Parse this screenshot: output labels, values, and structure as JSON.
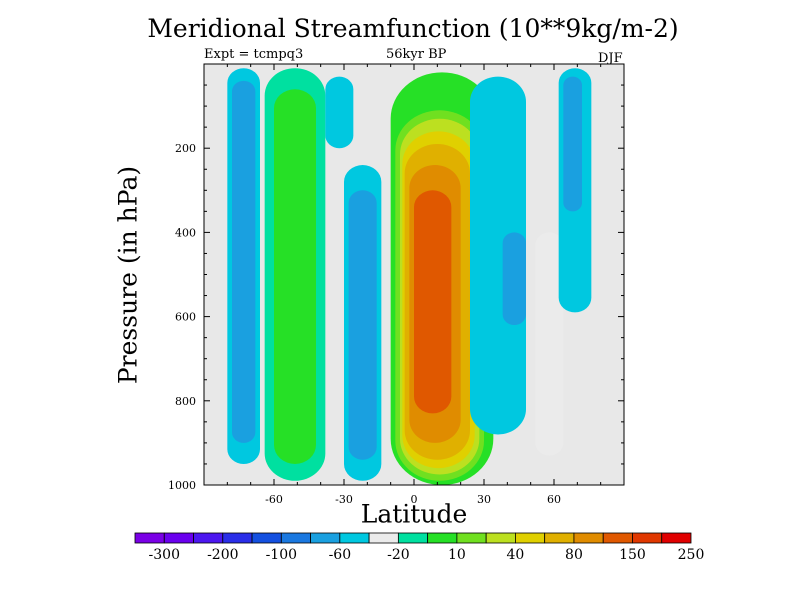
{
  "chart_data": {
    "type": "contour",
    "title": "Meridional Streamfunction (10**9kg/m-2)",
    "subtitle_left": "Expt = tcmpq3",
    "subtitle_center": "56kyr BP",
    "subtitle_right": "DJF",
    "xlabel": "Latitude",
    "ylabel": "Pressure (in hPa)",
    "xlim": [
      -90,
      90
    ],
    "ylim": [
      1000,
      0
    ],
    "x_ticks": [
      -60,
      -30,
      0,
      30,
      60
    ],
    "y_ticks": [
      200,
      400,
      600,
      800,
      1000
    ],
    "grid": false,
    "background_color": "#e8e8e8",
    "colorbar": {
      "colors": [
        "#7a00e6",
        "#6a00ee",
        "#4c17f0",
        "#2a2ee8",
        "#1450e0",
        "#1a78e0",
        "#1aa0e0",
        "#00c8e0",
        "#ebebeb",
        "#00e0a0",
        "#26e026",
        "#70e020",
        "#bce020",
        "#e0d000",
        "#e0b000",
        "#e08c00",
        "#e05800",
        "#e03800",
        "#e00000"
      ],
      "labels": [
        "-300",
        "-200",
        "-100",
        "-60",
        "-20",
        "10",
        "40",
        "80",
        "150",
        "250"
      ]
    },
    "cells": [
      {
        "x0": -80,
        "x1": -66,
        "y0": 10,
        "y1": 950,
        "level": 7
      },
      {
        "x0": -78,
        "x1": -68,
        "y0": 40,
        "y1": 900,
        "level": 6
      },
      {
        "x0": -64,
        "x1": -38,
        "y0": 10,
        "y1": 990,
        "level": 9
      },
      {
        "x0": -60,
        "x1": -42,
        "y0": 60,
        "y1": 950,
        "level": 10
      },
      {
        "x0": -38,
        "x1": -26,
        "y0": 30,
        "y1": 200,
        "level": 7
      },
      {
        "x0": -30,
        "x1": -14,
        "y0": 240,
        "y1": 990,
        "level": 7
      },
      {
        "x0": -28,
        "x1": -16,
        "y0": 300,
        "y1": 940,
        "level": 6
      },
      {
        "x0": -10,
        "x1": 34,
        "y0": 20,
        "y1": 1000,
        "level": 10
      },
      {
        "x0": -8,
        "x1": 30,
        "y0": 110,
        "y1": 990,
        "level": 11
      },
      {
        "x0": -6,
        "x1": 28,
        "y0": 130,
        "y1": 975,
        "level": 12
      },
      {
        "x0": -5,
        "x1": 26,
        "y0": 160,
        "y1": 960,
        "level": 13
      },
      {
        "x0": -4,
        "x1": 24,
        "y0": 190,
        "y1": 940,
        "level": 14
      },
      {
        "x0": -2,
        "x1": 20,
        "y0": 240,
        "y1": 900,
        "level": 15
      },
      {
        "x0": 0,
        "x1": 16,
        "y0": 300,
        "y1": 830,
        "level": 16
      },
      {
        "x0": 24,
        "x1": 48,
        "y0": 30,
        "y1": 880,
        "level": 7
      },
      {
        "x0": 38,
        "x1": 48,
        "y0": 400,
        "y1": 620,
        "level": 6
      },
      {
        "x0": 52,
        "x1": 64,
        "y0": 400,
        "y1": 930,
        "level": 8
      },
      {
        "x0": 62,
        "x1": 76,
        "y0": 10,
        "y1": 590,
        "level": 7
      },
      {
        "x0": 64,
        "x1": 72,
        "y0": 30,
        "y1": 350,
        "level": 6
      }
    ]
  }
}
